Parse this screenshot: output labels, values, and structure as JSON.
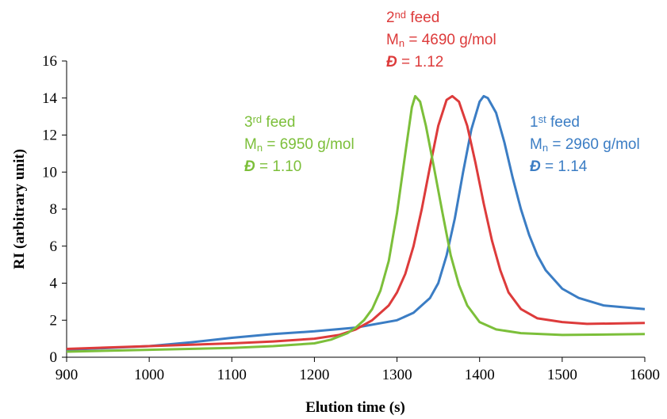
{
  "chart_data": {
    "type": "line",
    "xlabel": "Elution time (s)",
    "ylabel": "RI (arbitrary unit)",
    "xlim": [
      900,
      1600
    ],
    "xticks": [
      900,
      1000,
      1100,
      1200,
      1300,
      1400,
      1500,
      1600
    ],
    "ylim": [
      0,
      16
    ],
    "yticks": [
      0,
      2,
      4,
      6,
      8,
      10,
      12,
      14,
      16
    ],
    "series": [
      {
        "color": "#3b7dc4",
        "x": [
          900,
          1000,
          1050,
          1100,
          1150,
          1200,
          1250,
          1300,
          1320,
          1340,
          1350,
          1360,
          1370,
          1380,
          1390,
          1400,
          1405,
          1410,
          1420,
          1430,
          1440,
          1450,
          1460,
          1470,
          1480,
          1500,
          1520,
          1550,
          1600
        ],
        "values": [
          0.4,
          0.6,
          0.8,
          1.05,
          1.25,
          1.4,
          1.6,
          2.0,
          2.4,
          3.2,
          4.0,
          5.5,
          7.5,
          10,
          12.3,
          13.8,
          14.1,
          14.0,
          13.2,
          11.6,
          9.7,
          8.0,
          6.6,
          5.5,
          4.7,
          3.7,
          3.2,
          2.8,
          2.6
        ]
      },
      {
        "color": "#dd3b3b",
        "x": [
          900,
          1000,
          1100,
          1150,
          1200,
          1230,
          1250,
          1270,
          1290,
          1300,
          1310,
          1320,
          1330,
          1340,
          1350,
          1360,
          1367,
          1375,
          1385,
          1395,
          1405,
          1415,
          1425,
          1435,
          1450,
          1470,
          1500,
          1530,
          1600
        ],
        "values": [
          0.45,
          0.6,
          0.75,
          0.85,
          1.0,
          1.2,
          1.5,
          2.0,
          2.8,
          3.5,
          4.5,
          6.0,
          8.0,
          10.3,
          12.5,
          13.9,
          14.1,
          13.8,
          12.5,
          10.5,
          8.3,
          6.3,
          4.7,
          3.5,
          2.6,
          2.1,
          1.9,
          1.8,
          1.85
        ]
      },
      {
        "color": "#7cbf3a",
        "x": [
          900,
          1000,
          1100,
          1150,
          1200,
          1220,
          1240,
          1250,
          1260,
          1270,
          1280,
          1290,
          1300,
          1310,
          1318,
          1322,
          1328,
          1335,
          1345,
          1355,
          1365,
          1375,
          1385,
          1400,
          1420,
          1450,
          1500,
          1600
        ],
        "values": [
          0.3,
          0.4,
          0.5,
          0.6,
          0.75,
          0.95,
          1.3,
          1.6,
          2.0,
          2.6,
          3.6,
          5.2,
          7.8,
          11.0,
          13.5,
          14.1,
          13.8,
          12.5,
          10.2,
          7.8,
          5.5,
          3.9,
          2.8,
          1.9,
          1.5,
          1.3,
          1.2,
          1.25
        ]
      }
    ],
    "annotations": [
      {
        "color": "#3b7dc4",
        "lines": [
          [
            {
              "text": "1"
            },
            {
              "text": "st",
              "shift": "super"
            },
            {
              "text": " feed"
            }
          ],
          [
            {
              "text": "M"
            },
            {
              "text": "n",
              "shift": "sub"
            },
            {
              "text": " = 2960  g/mol"
            }
          ],
          [
            {
              "text": "Đ",
              "style": "italic"
            },
            {
              "text": " = 1.14"
            }
          ]
        ]
      },
      {
        "color": "#dd3b3b",
        "lines": [
          [
            {
              "text": "2"
            },
            {
              "text": "nd",
              "shift": "super"
            },
            {
              "text": " feed"
            }
          ],
          [
            {
              "text": "M"
            },
            {
              "text": "n",
              "shift": "sub"
            },
            {
              "text": " = 4690 g/mol"
            }
          ],
          [
            {
              "text": "Đ",
              "style": "italic"
            },
            {
              "text": " = 1.12"
            }
          ]
        ]
      },
      {
        "color": "#7cbf3a",
        "lines": [
          [
            {
              "text": "3"
            },
            {
              "text": "rd",
              "shift": "super"
            },
            {
              "text": " feed"
            }
          ],
          [
            {
              "text": "M"
            },
            {
              "text": "n",
              "shift": "sub"
            },
            {
              "text": " = 6950 g/mol"
            }
          ],
          [
            {
              "text": "Đ",
              "style": "italic"
            },
            {
              "text": "  = 1.10"
            }
          ]
        ]
      }
    ]
  }
}
